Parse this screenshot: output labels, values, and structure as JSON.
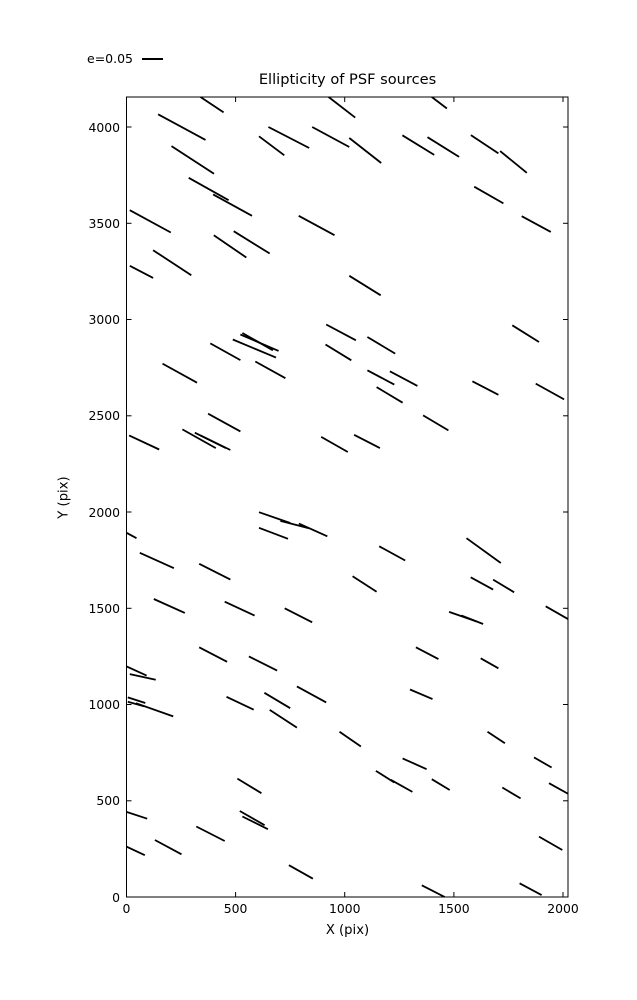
{
  "title": "Ellipticity of PSF sources",
  "legend": {
    "label": "e=0.05"
  },
  "x_axis": {
    "label": "X (pix)",
    "tick_labels": [
      "0",
      "500",
      "1000",
      "1500",
      "2000"
    ]
  },
  "y_axis": {
    "label": "Y (pix)",
    "tick_labels": [
      "0",
      "500",
      "1000",
      "1500",
      "2000",
      "2500",
      "3000",
      "3500",
      "4000"
    ]
  },
  "chart_data": {
    "type": "scatter",
    "subtype": "whisker-quiver plot: each black segment shows the ellipticity of one PSF source at its (X,Y) position",
    "title": "Ellipticity of PSF sources",
    "xlabel": "X (pix)",
    "ylabel": "Y (pix)",
    "xlim": [
      0,
      2023
    ],
    "ylim": [
      0,
      4156
    ],
    "xticks": [
      0,
      500,
      1000,
      1500,
      2000
    ],
    "yticks": [
      0,
      500,
      1000,
      1500,
      2000,
      2500,
      3000,
      3500,
      4000
    ],
    "grid": false,
    "legend_position": "above-left",
    "legend_scale_label": "e=0.05",
    "segment_color": "#000000",
    "segments": [
      [
        145,
        4066,
        362,
        3933
      ],
      [
        339,
        4156,
        445,
        4076
      ],
      [
        206,
        3901,
        401,
        3757
      ],
      [
        285,
        3736,
        468,
        3620
      ],
      [
        397,
        3650,
        575,
        3539
      ],
      [
        650,
        4000,
        837,
        3891
      ],
      [
        607,
        3952,
        723,
        3853
      ],
      [
        851,
        4000,
        1021,
        3896
      ],
      [
        1021,
        3943,
        1167,
        3813
      ],
      [
        926,
        4156,
        1048,
        4049
      ],
      [
        15,
        3568,
        203,
        3452
      ],
      [
        122,
        3360,
        297,
        3230
      ],
      [
        15,
        3279,
        122,
        3216
      ],
      [
        400,
        3438,
        549,
        3322
      ],
      [
        491,
        3459,
        656,
        3343
      ],
      [
        789,
        3539,
        953,
        3438
      ],
      [
        1264,
        3957,
        1410,
        3855
      ],
      [
        1379,
        3947,
        1524,
        3845
      ],
      [
        1399,
        4156,
        1468,
        4096
      ],
      [
        1578,
        3958,
        1704,
        3863
      ],
      [
        1712,
        3875,
        1834,
        3762
      ],
      [
        1593,
        3690,
        1727,
        3603
      ],
      [
        1811,
        3537,
        1944,
        3455
      ],
      [
        1021,
        3227,
        1165,
        3126
      ],
      [
        165,
        2771,
        323,
        2672
      ],
      [
        384,
        2876,
        522,
        2789
      ],
      [
        522,
        2922,
        697,
        2837
      ],
      [
        531,
        2930,
        671,
        2840
      ],
      [
        487,
        2896,
        685,
        2802
      ],
      [
        590,
        2782,
        728,
        2695
      ],
      [
        12,
        2398,
        150,
        2325
      ],
      [
        256,
        2429,
        409,
        2332
      ],
      [
        313,
        2412,
        455,
        2332
      ],
      [
        339,
        2398,
        476,
        2322
      ],
      [
        374,
        2511,
        522,
        2419
      ],
      [
        892,
        2390,
        1014,
        2312
      ],
      [
        915,
        2974,
        1051,
        2892
      ],
      [
        912,
        2870,
        1030,
        2788
      ],
      [
        1104,
        2909,
        1231,
        2823
      ],
      [
        1104,
        2736,
        1227,
        2662
      ],
      [
        1207,
        2731,
        1333,
        2655
      ],
      [
        1146,
        2649,
        1265,
        2568
      ],
      [
        1359,
        2502,
        1475,
        2424
      ],
      [
        1043,
        2401,
        1161,
        2332
      ],
      [
        1585,
        2679,
        1704,
        2609
      ],
      [
        1768,
        2970,
        1890,
        2883
      ],
      [
        1875,
        2667,
        2005,
        2585
      ],
      [
        0,
        1892,
        46,
        1864
      ],
      [
        61,
        1788,
        217,
        1708
      ],
      [
        333,
        1731,
        476,
        1649
      ],
      [
        125,
        1548,
        267,
        1476
      ],
      [
        450,
        1534,
        587,
        1462
      ],
      [
        725,
        1500,
        851,
        1427
      ],
      [
        607,
        1999,
        750,
        1943
      ],
      [
        607,
        1918,
        740,
        1861
      ],
      [
        705,
        1954,
        836,
        1916
      ],
      [
        790,
        1940,
        920,
        1874
      ],
      [
        333,
        1297,
        461,
        1222
      ],
      [
        561,
        1250,
        690,
        1176
      ],
      [
        0,
        1198,
        92,
        1150
      ],
      [
        15,
        1158,
        134,
        1129
      ],
      [
        632,
        1061,
        750,
        981
      ],
      [
        781,
        1094,
        915,
        1011
      ],
      [
        1158,
        1822,
        1277,
        1748
      ],
      [
        1036,
        1666,
        1146,
        1586
      ],
      [
        1558,
        1864,
        1715,
        1735
      ],
      [
        1577,
        1661,
        1680,
        1597
      ],
      [
        1680,
        1649,
        1776,
        1583
      ],
      [
        1478,
        1481,
        1603,
        1432
      ],
      [
        1534,
        1463,
        1634,
        1418
      ],
      [
        1921,
        1510,
        2027,
        1441
      ],
      [
        1326,
        1297,
        1429,
        1236
      ],
      [
        1623,
        1240,
        1704,
        1188
      ],
      [
        1299,
        1078,
        1402,
        1028
      ],
      [
        6,
        1037,
        86,
        1008
      ],
      [
        6,
        1014,
        82,
        990
      ],
      [
        43,
        1007,
        214,
        938
      ],
      [
        458,
        1040,
        583,
        973
      ],
      [
        656,
        972,
        781,
        880
      ],
      [
        976,
        858,
        1074,
        782
      ],
      [
        508,
        615,
        618,
        539
      ],
      [
        519,
        447,
        633,
        373
      ],
      [
        531,
        418,
        648,
        352
      ],
      [
        320,
        366,
        450,
        291
      ],
      [
        130,
        296,
        252,
        222
      ],
      [
        0,
        442,
        95,
        407
      ],
      [
        0,
        262,
        84,
        217
      ],
      [
        744,
        165,
        854,
        95
      ],
      [
        1265,
        720,
        1375,
        664
      ],
      [
        1143,
        655,
        1227,
        595
      ],
      [
        1211,
        609,
        1310,
        546
      ],
      [
        1399,
        612,
        1481,
        556
      ],
      [
        1654,
        858,
        1734,
        799
      ],
      [
        1722,
        569,
        1806,
        512
      ],
      [
        1867,
        725,
        1948,
        673
      ],
      [
        1936,
        591,
        2035,
        529
      ],
      [
        1890,
        314,
        1997,
        244
      ],
      [
        1353,
        61,
        1458,
        0
      ],
      [
        1801,
        71,
        1902,
        10
      ]
    ]
  }
}
